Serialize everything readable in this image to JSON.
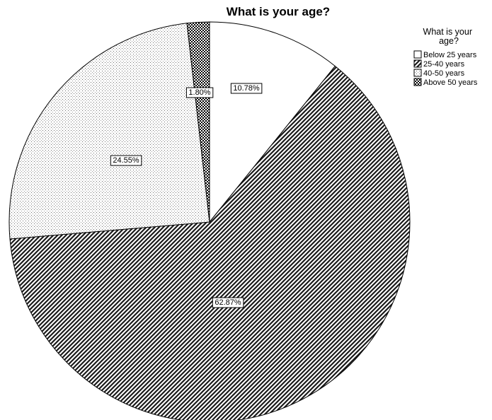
{
  "chart_data": {
    "type": "pie",
    "title": "What is your age?",
    "legend_title": "What is your age?",
    "legend_position": "top-right",
    "start_angle_deg": 0,
    "direction": "clockwise",
    "categories": [
      "Below 25 years",
      "25-40 years",
      "40-50 years",
      "Above 50 years"
    ],
    "values": [
      10.78,
      62.87,
      24.55,
      1.8
    ],
    "labels": [
      "10.78%",
      "62.87%",
      "24.55%",
      "1.80%"
    ],
    "patterns": [
      "blank",
      "diagonal-hatch",
      "fine-dots",
      "checker"
    ]
  }
}
